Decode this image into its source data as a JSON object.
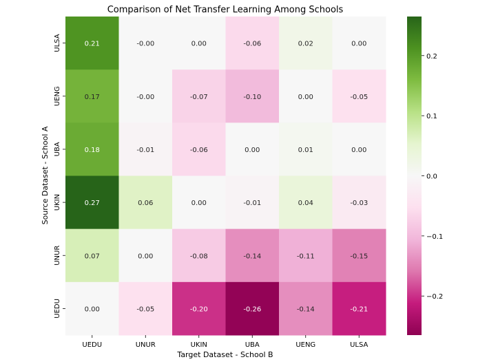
{
  "chart_data": {
    "type": "heatmap",
    "title": "Comparison of Net Transfer Learning Among Schools",
    "xlabel": "Target Dataset - School B",
    "ylabel": "Source Dataset - School A",
    "x_categories": [
      "UEDU",
      "UNUR",
      "UKIN",
      "UBA",
      "UENG",
      "ULSA"
    ],
    "y_categories": [
      "ULSA",
      "UENG",
      "UBA",
      "UKIN",
      "UNUR",
      "UEDU"
    ],
    "values": [
      [
        0.21,
        -0.0,
        0.0,
        -0.06,
        0.02,
        0.0
      ],
      [
        0.17,
        -0.0,
        -0.07,
        -0.1,
        0.0,
        -0.05
      ],
      [
        0.18,
        -0.01,
        -0.06,
        0.0,
        0.01,
        0.0
      ],
      [
        0.27,
        0.06,
        0.0,
        -0.01,
        0.04,
        -0.03
      ],
      [
        0.07,
        0.0,
        -0.08,
        -0.14,
        -0.11,
        -0.15
      ],
      [
        0.0,
        -0.05,
        -0.2,
        -0.26,
        -0.14,
        -0.21
      ]
    ],
    "value_labels": [
      [
        "0.21",
        "-0.00",
        "0.00",
        "-0.06",
        "0.02",
        "0.00"
      ],
      [
        "0.17",
        "-0.00",
        "-0.07",
        "-0.10",
        "0.00",
        "-0.05"
      ],
      [
        "0.18",
        "-0.01",
        "-0.06",
        "0.00",
        "0.01",
        "0.00"
      ],
      [
        "0.27",
        "0.06",
        "0.00",
        "-0.01",
        "0.04",
        "-0.03"
      ],
      [
        "0.07",
        "0.00",
        "-0.08",
        "-0.14",
        "-0.11",
        "-0.15"
      ],
      [
        "0.00",
        "-0.05",
        "-0.20",
        "-0.26",
        "-0.14",
        "-0.21"
      ]
    ],
    "colormap": "PiYG",
    "color_range": [
      -0.265,
      0.265
    ],
    "colorbar_ticks": [
      0.2,
      0.1,
      0.0,
      -0.1,
      -0.2
    ],
    "colorbar_tick_labels": [
      "0.2",
      "0.1",
      "0.0",
      "−0.1",
      "−0.2"
    ]
  }
}
